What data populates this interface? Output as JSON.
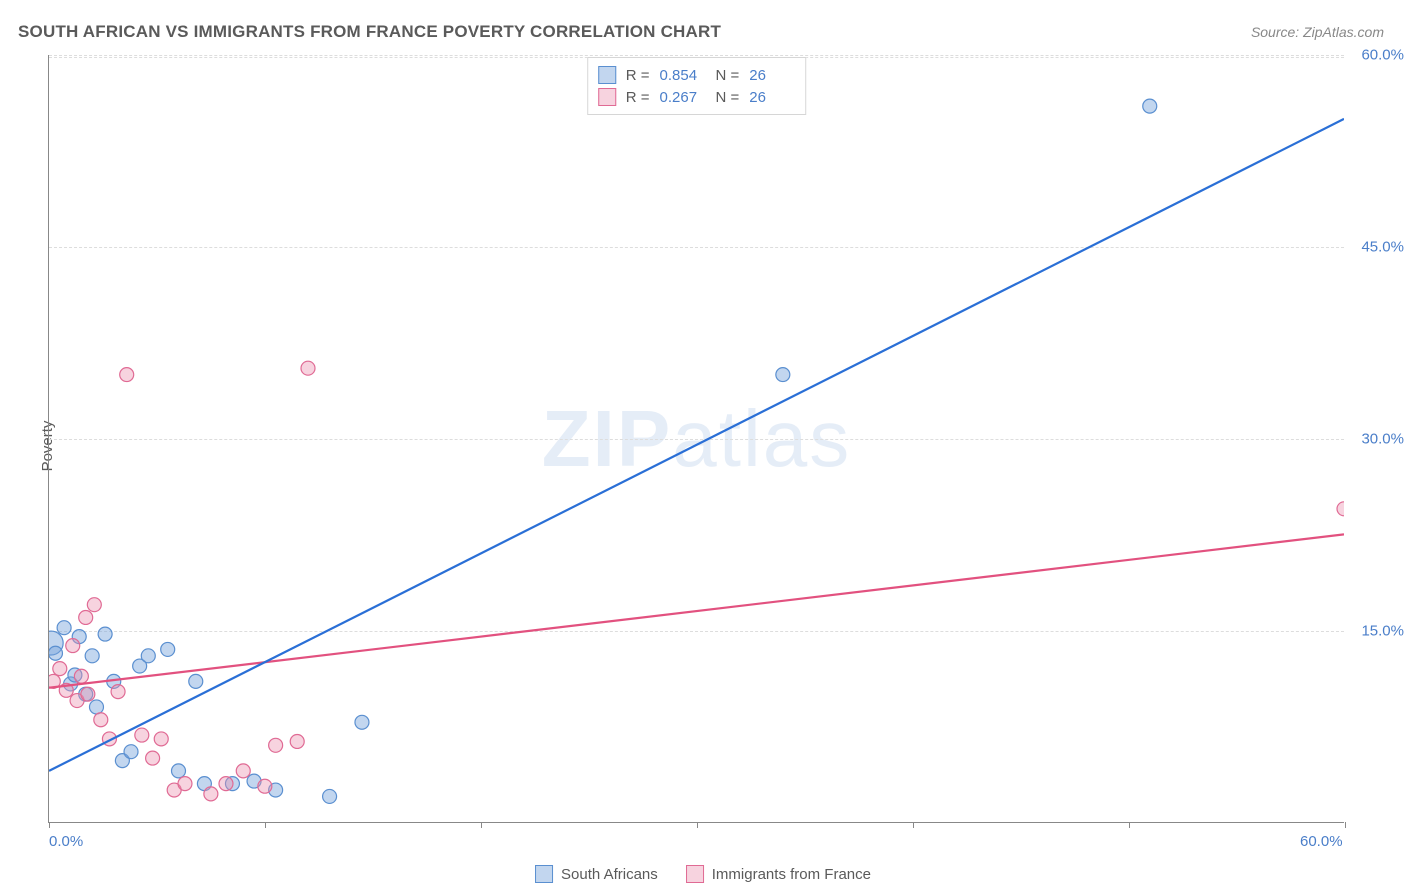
{
  "title": "SOUTH AFRICAN VS IMMIGRANTS FROM FRANCE POVERTY CORRELATION CHART",
  "source": "Source: ZipAtlas.com",
  "watermark": "ZIPatlas",
  "y_axis_title": "Poverty",
  "chart": {
    "type": "scatter",
    "xlim": [
      0,
      60
    ],
    "ylim": [
      0,
      60
    ],
    "x_ticks": [
      0,
      10,
      20,
      30,
      40,
      50,
      60
    ],
    "x_tick_labels": {
      "0": "0.0%",
      "60": "60.0%"
    },
    "y_grid": [
      15,
      30,
      45,
      60
    ],
    "y_tick_labels": {
      "15": "15.0%",
      "30": "30.0%",
      "45": "45.0%",
      "60": "60.0%"
    },
    "background_color": "#ffffff",
    "grid_color": "#dddddd",
    "axis_color": "#888888",
    "tick_label_color": "#4a7ec9",
    "tick_label_fontsize": 15,
    "title_color": "#5a5a5a",
    "title_fontsize": 17,
    "marker_radius": 7,
    "marker_radius_large": 12,
    "marker_stroke_width": 1.2,
    "line_width": 2.2,
    "series": [
      {
        "key": "south_africans",
        "label": "South Africans",
        "fill": "rgba(120,165,220,0.45)",
        "stroke": "#5a8fd0",
        "line_color": "#2a6fd6",
        "R": "0.854",
        "N": "26",
        "trend": {
          "x1": 0,
          "y1": 4,
          "x2": 60,
          "y2": 55
        },
        "points": [
          {
            "x": 0.1,
            "y": 14.0,
            "r": 12
          },
          {
            "x": 0.3,
            "y": 13.2
          },
          {
            "x": 0.7,
            "y": 15.2
          },
          {
            "x": 1.0,
            "y": 10.8
          },
          {
            "x": 1.2,
            "y": 11.5
          },
          {
            "x": 1.4,
            "y": 14.5
          },
          {
            "x": 1.7,
            "y": 10.0
          },
          {
            "x": 2.0,
            "y": 13.0
          },
          {
            "x": 2.2,
            "y": 9.0
          },
          {
            "x": 2.6,
            "y": 14.7
          },
          {
            "x": 3.0,
            "y": 11.0
          },
          {
            "x": 3.4,
            "y": 4.8
          },
          {
            "x": 3.8,
            "y": 5.5
          },
          {
            "x": 4.2,
            "y": 12.2
          },
          {
            "x": 4.6,
            "y": 13.0
          },
          {
            "x": 5.5,
            "y": 13.5
          },
          {
            "x": 6.0,
            "y": 4.0
          },
          {
            "x": 6.8,
            "y": 11.0
          },
          {
            "x": 7.2,
            "y": 3.0
          },
          {
            "x": 8.5,
            "y": 3.0
          },
          {
            "x": 9.5,
            "y": 3.2
          },
          {
            "x": 10.5,
            "y": 2.5
          },
          {
            "x": 13.0,
            "y": 2.0
          },
          {
            "x": 14.5,
            "y": 7.8
          },
          {
            "x": 34.0,
            "y": 35.0
          },
          {
            "x": 51.0,
            "y": 56.0
          }
        ]
      },
      {
        "key": "immigrants_france",
        "label": "Immigrants from France",
        "fill": "rgba(235,145,175,0.40)",
        "stroke": "#e06a94",
        "line_color": "#e2517f",
        "R": "0.267",
        "N": "26",
        "trend": {
          "x1": 0,
          "y1": 10.5,
          "x2": 60,
          "y2": 22.5
        },
        "points": [
          {
            "x": 0.2,
            "y": 11.0
          },
          {
            "x": 0.5,
            "y": 12.0
          },
          {
            "x": 0.8,
            "y": 10.3
          },
          {
            "x": 1.1,
            "y": 13.8
          },
          {
            "x": 1.3,
            "y": 9.5
          },
          {
            "x": 1.5,
            "y": 11.4
          },
          {
            "x": 1.7,
            "y": 16.0
          },
          {
            "x": 1.8,
            "y": 10.0
          },
          {
            "x": 2.1,
            "y": 17.0
          },
          {
            "x": 2.4,
            "y": 8.0
          },
          {
            "x": 2.8,
            "y": 6.5
          },
          {
            "x": 3.2,
            "y": 10.2
          },
          {
            "x": 3.6,
            "y": 35.0
          },
          {
            "x": 4.3,
            "y": 6.8
          },
          {
            "x": 4.8,
            "y": 5.0
          },
          {
            "x": 5.2,
            "y": 6.5
          },
          {
            "x": 5.8,
            "y": 2.5
          },
          {
            "x": 6.3,
            "y": 3.0
          },
          {
            "x": 7.5,
            "y": 2.2
          },
          {
            "x": 8.2,
            "y": 3.0
          },
          {
            "x": 9.0,
            "y": 4.0
          },
          {
            "x": 10.0,
            "y": 2.8
          },
          {
            "x": 10.5,
            "y": 6.0
          },
          {
            "x": 11.5,
            "y": 6.3
          },
          {
            "x": 12.0,
            "y": 35.5
          },
          {
            "x": 60.0,
            "y": 24.5
          }
        ]
      }
    ]
  },
  "legend_corr_labels": {
    "R": "R =",
    "N": "N ="
  }
}
